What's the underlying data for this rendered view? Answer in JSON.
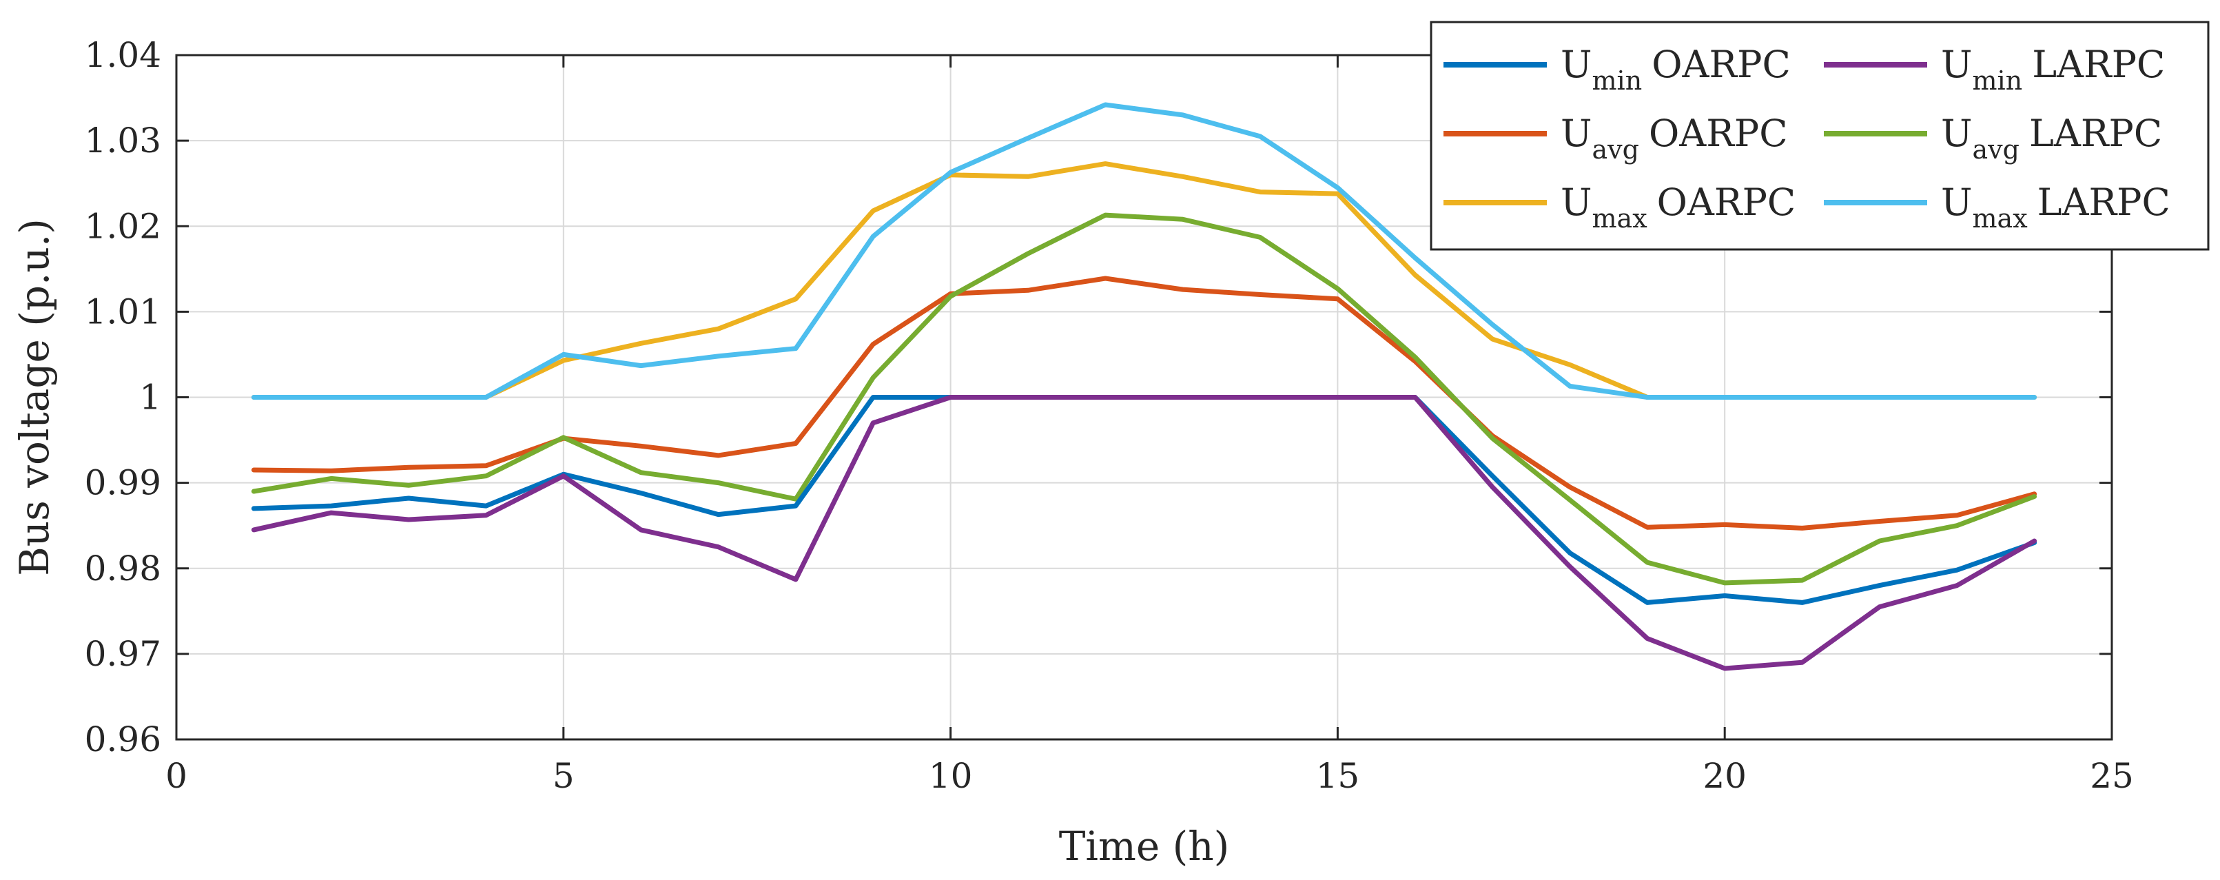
{
  "chart_data": {
    "type": "line",
    "title": "",
    "xlabel": "Time (h)",
    "ylabel": "Bus voltage (p.u.)",
    "xlim": [
      0,
      25
    ],
    "ylim": [
      0.96,
      1.04
    ],
    "xticks": [
      0,
      5,
      10,
      15,
      20,
      25
    ],
    "xtick_labels": [
      "0",
      "5",
      "10",
      "15",
      "20",
      "25"
    ],
    "yticks": [
      0.96,
      0.97,
      0.98,
      0.99,
      1.0,
      1.01,
      1.02,
      1.03,
      1.04
    ],
    "ytick_labels": [
      "0.96",
      "0.97",
      "0.98",
      "0.99",
      "1",
      "1.01",
      "1.02",
      "1.03",
      "1.04"
    ],
    "grid": true,
    "legend_position": "top-right",
    "x": [
      1,
      2,
      3,
      4,
      5,
      6,
      7,
      8,
      9,
      10,
      11,
      12,
      13,
      14,
      15,
      16,
      17,
      18,
      19,
      20,
      21,
      22,
      23,
      24
    ],
    "series": [
      {
        "key": "umin-oarpc",
        "name": "Umin OARPC",
        "label_main": "U",
        "label_sub": "min",
        "label_suffix": "OARPC",
        "color": "#0072BD",
        "values": [
          0.987,
          0.9873,
          0.9882,
          0.9873,
          0.991,
          0.9888,
          0.9863,
          0.9873,
          1.0,
          1.0,
          1.0,
          1.0,
          1.0,
          1.0,
          1.0,
          1.0,
          0.9908,
          0.9818,
          0.976,
          0.9768,
          0.976,
          0.978,
          0.9798,
          0.983
        ]
      },
      {
        "key": "uavg-oarpc",
        "name": "Uavg OARPC",
        "label_main": "U",
        "label_sub": "avg",
        "label_suffix": "OARPC",
        "color": "#D95319",
        "values": [
          0.9915,
          0.9914,
          0.9918,
          0.992,
          0.9952,
          0.9943,
          0.9932,
          0.9946,
          1.0062,
          1.0121,
          1.0125,
          1.0139,
          1.0126,
          1.012,
          1.0115,
          1.0042,
          0.9955,
          0.9895,
          0.9848,
          0.9851,
          0.9847,
          0.9855,
          0.9862,
          0.9887
        ]
      },
      {
        "key": "umax-oarpc",
        "name": "Umax OARPC",
        "label_main": "U",
        "label_sub": "max",
        "label_suffix": "OARPC",
        "color": "#EDB120",
        "values": [
          1.0,
          1.0,
          1.0,
          1.0,
          1.0043,
          1.0063,
          1.008,
          1.0115,
          1.0218,
          1.026,
          1.0258,
          1.0273,
          1.0258,
          1.024,
          1.0238,
          1.0143,
          1.0068,
          1.0038,
          1.0,
          1.0,
          1.0,
          1.0,
          1.0,
          1.0
        ]
      },
      {
        "key": "umin-larpc",
        "name": "Umin LARPC",
        "label_main": "U",
        "label_sub": "min",
        "label_suffix": "LARPC",
        "color": "#7E2F8E",
        "values": [
          0.9845,
          0.9865,
          0.9857,
          0.9862,
          0.9908,
          0.9845,
          0.9825,
          0.9787,
          0.997,
          1.0,
          1.0,
          1.0,
          1.0,
          1.0,
          1.0,
          1.0,
          0.9895,
          0.9802,
          0.9718,
          0.9683,
          0.969,
          0.9755,
          0.978,
          0.9832
        ]
      },
      {
        "key": "uavg-larpc",
        "name": "Uavg LARPC",
        "label_main": "U",
        "label_sub": "avg",
        "label_suffix": "LARPC",
        "color": "#77AC30",
        "values": [
          0.989,
          0.9905,
          0.9897,
          0.9908,
          0.9953,
          0.9912,
          0.99,
          0.9881,
          1.0023,
          1.0118,
          1.0168,
          1.0213,
          1.0208,
          1.0187,
          1.0127,
          1.0047,
          0.9952,
          0.988,
          0.9807,
          0.9783,
          0.9786,
          0.9832,
          0.985,
          0.9884
        ]
      },
      {
        "key": "umax-larpc",
        "name": "Umax LARPC",
        "label_main": "U",
        "label_sub": "max",
        "label_suffix": "LARPC",
        "color": "#4DBEEE",
        "values": [
          1.0,
          1.0,
          1.0,
          1.0,
          1.005,
          1.0037,
          1.0048,
          1.0057,
          1.0188,
          1.0263,
          1.0303,
          1.0342,
          1.033,
          1.0305,
          1.0245,
          1.0163,
          1.0085,
          1.0013,
          1.0,
          1.0,
          1.0,
          1.0,
          1.0,
          1.0
        ]
      }
    ]
  }
}
